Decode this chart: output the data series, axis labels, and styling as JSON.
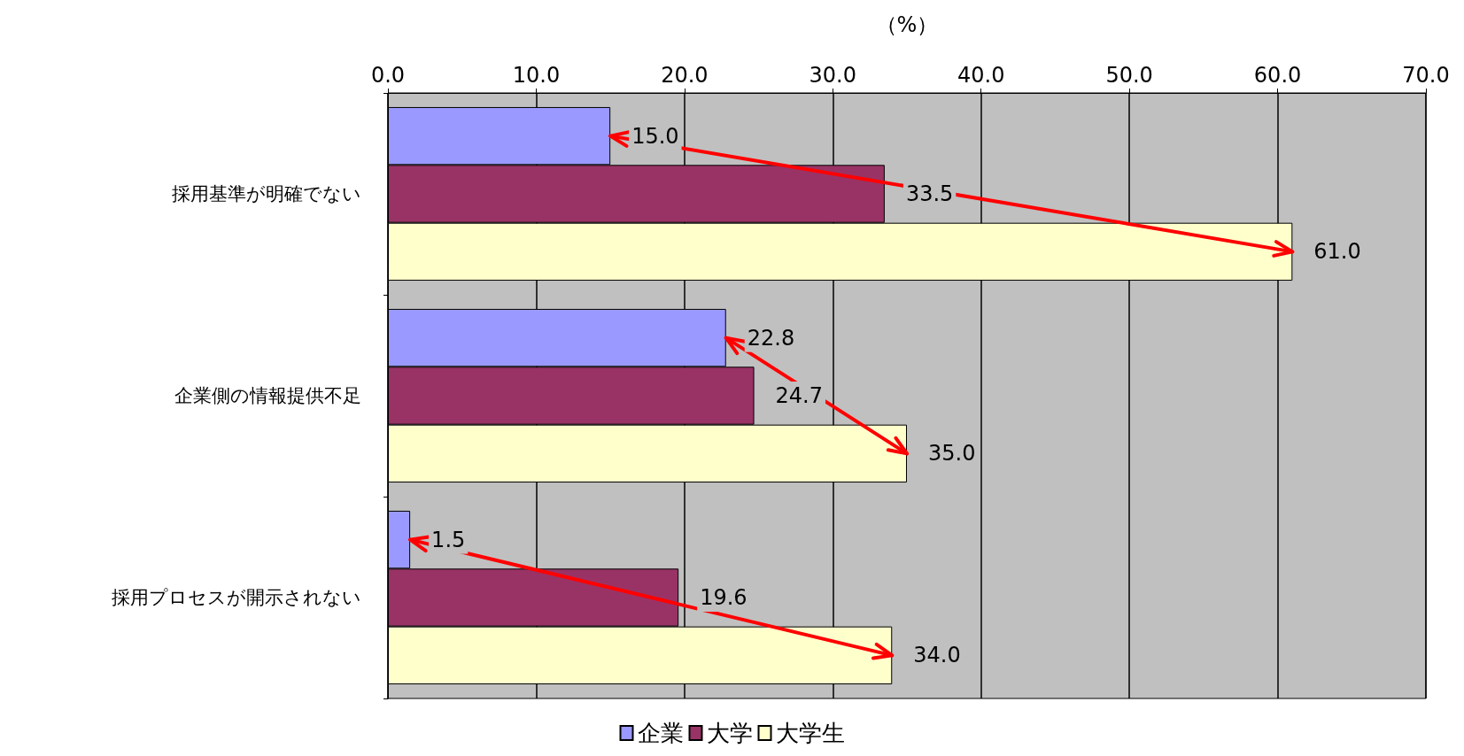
{
  "chart_data": {
    "type": "bar",
    "orientation": "horizontal",
    "xlabel": "（%）",
    "categories": [
      "採用基準が明確でない",
      "企業側の情報提供不足",
      "採用プロセスが開示されない"
    ],
    "series": [
      {
        "name": "企業",
        "color": "#9999ff",
        "values": [
          15.0,
          22.8,
          1.5
        ],
        "value_labels": [
          "15.0",
          "22.8",
          "1.5"
        ]
      },
      {
        "name": "大学",
        "color": "#993366",
        "values": [
          33.5,
          24.7,
          19.6
        ],
        "value_labels": [
          "33.5",
          "24.7",
          "19.6"
        ]
      },
      {
        "name": "大学生",
        "color": "#ffffcc",
        "values": [
          61.0,
          35.0,
          34.0
        ],
        "value_labels": [
          "61.0",
          "35.0",
          "34.0"
        ]
      }
    ],
    "xlim": [
      0,
      70
    ],
    "xticks": [
      {
        "value": 0,
        "label": "0.0"
      },
      {
        "value": 10,
        "label": "10.0"
      },
      {
        "value": 20,
        "label": "20.0"
      },
      {
        "value": 30,
        "label": "30.0"
      },
      {
        "value": 40,
        "label": "40.0"
      },
      {
        "value": 50,
        "label": "50.0"
      },
      {
        "value": 60,
        "label": "60.0"
      },
      {
        "value": 70,
        "label": "70.0"
      }
    ],
    "grid": "x",
    "legend": "bottom"
  }
}
